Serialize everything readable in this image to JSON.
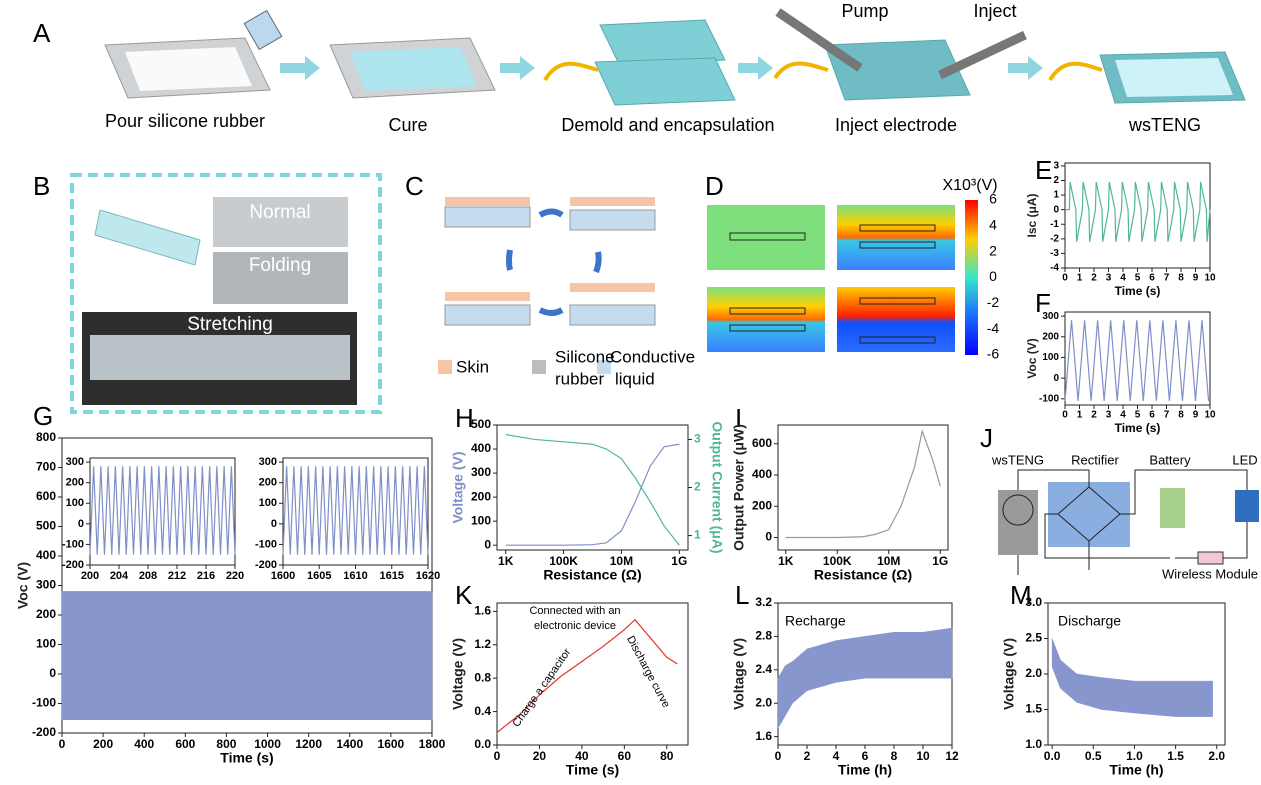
{
  "panel_a": {
    "label": "A",
    "steps": [
      "Pour silicone rubber",
      "Cure",
      "Demold and encapsulation",
      "Inject electrode",
      "wsTENG"
    ],
    "pump": "Pump",
    "inject": "Inject"
  },
  "panel_b": {
    "label": "B",
    "photos": [
      "Normal",
      "Folding",
      "Stretching"
    ]
  },
  "panel_c": {
    "label": "C",
    "legend": [
      [
        "Skin"
      ],
      [
        "Silicone",
        "rubber"
      ],
      [
        "Conductive",
        "liquid"
      ]
    ]
  },
  "panel_d": {
    "label": "D",
    "colorbar": {
      "title": "X10³(V)",
      "ticks": [
        6,
        4,
        2,
        0,
        -2,
        -4,
        -6
      ]
    }
  },
  "panel_j": {
    "label": "J",
    "nodes": [
      "wsTENG",
      "Rectifier",
      "Battery",
      "LED",
      "Wireless Module"
    ]
  },
  "chart_data": [
    {
      "type": "line",
      "panel": "E",
      "xlabel": "Time (s)",
      "ylabel": "Isc (μA)",
      "xlim": [
        0,
        10
      ],
      "ylim": [
        -4,
        3.2
      ],
      "xticks": [
        0,
        1,
        2,
        3,
        4,
        5,
        6,
        7,
        8,
        9,
        10
      ],
      "yticks": [
        -4,
        -3,
        -2,
        -1,
        0,
        1,
        2,
        3
      ],
      "x": [
        0,
        0.3,
        0.35,
        0.75,
        0.8,
        1.2,
        1.25,
        1.65,
        1.7,
        2.1,
        2.15,
        2.55,
        2.6,
        3.0,
        3.05,
        3.45,
        3.5,
        3.9,
        3.95,
        4.35,
        4.4,
        4.8,
        4.85,
        5.25,
        5.3,
        5.7,
        5.75,
        6.15,
        6.2,
        6.6,
        6.65,
        7.05,
        7.1,
        7.5,
        7.55,
        7.95,
        8.0,
        8.4,
        8.45,
        8.85,
        8.9,
        9.3,
        9.35,
        9.75,
        9.8,
        10
      ],
      "series": [
        {
          "color": "#4fb88f",
          "values": [
            0,
            0,
            1.9,
            0,
            -2.2,
            0,
            1.9,
            0,
            -2.2,
            0,
            1.9,
            0,
            -2.2,
            0,
            1.9,
            0,
            -2.2,
            0,
            1.9,
            0,
            -2.2,
            0,
            1.9,
            0,
            -2.2,
            0,
            1.9,
            0,
            -2.2,
            0,
            1.9,
            0,
            -2.2,
            0,
            1.9,
            0,
            -2.2,
            0,
            1.9,
            0,
            -2.2,
            0,
            1.9,
            0,
            -2.2,
            0
          ]
        }
      ]
    },
    {
      "type": "line",
      "panel": "F",
      "xlabel": "Time (s)",
      "ylabel": "Voc (V)",
      "xlim": [
        0,
        10
      ],
      "ylim": [
        -130,
        320
      ],
      "xticks": [
        0,
        1,
        2,
        3,
        4,
        5,
        6,
        7,
        8,
        9,
        10
      ],
      "yticks": [
        -100,
        0,
        100,
        200,
        300
      ],
      "x": [
        0,
        0.45,
        0.9,
        1.35,
        1.8,
        2.25,
        2.7,
        3.15,
        3.6,
        4.05,
        4.5,
        4.95,
        5.4,
        5.85,
        6.3,
        6.75,
        7.2,
        7.65,
        8.1,
        8.55,
        9.0,
        9.45,
        9.9
      ],
      "series": [
        {
          "color": "#7f8fc8",
          "values": [
            -110,
            280,
            -110,
            280,
            -110,
            280,
            -110,
            280,
            -110,
            280,
            -110,
            280,
            -110,
            280,
            -110,
            280,
            -110,
            280,
            -110,
            280,
            -110,
            280,
            -110
          ]
        }
      ]
    },
    {
      "type": "band",
      "panel": "G",
      "xlabel": "Time (s)",
      "ylabel": "Voc (V)",
      "xlim": [
        0,
        1800
      ],
      "ylim": [
        -200,
        800
      ],
      "xticks": [
        0,
        200,
        400,
        600,
        800,
        1000,
        1200,
        1400,
        1600,
        1800
      ],
      "yticks": [
        -200,
        -100,
        0,
        100,
        200,
        300,
        400,
        500,
        600,
        700,
        800
      ],
      "x": [
        0,
        1800
      ],
      "series": [
        {
          "color": "#8796cc",
          "upper": [
            280,
            280
          ],
          "lower": [
            -155,
            -155
          ]
        }
      ]
    },
    {
      "type": "line",
      "xlim": [
        200,
        220
      ],
      "ylim": [
        -200,
        320
      ],
      "xticks": [
        200,
        204,
        208,
        212,
        216,
        220
      ],
      "yticks": [
        -200,
        -100,
        0,
        100,
        200,
        300
      ],
      "x": [
        200,
        200.5,
        201,
        201.5,
        202,
        202.5,
        203,
        203.5,
        204,
        204.5,
        205,
        205.5,
        206,
        206.5,
        207,
        207.5,
        208,
        208.5,
        209,
        209.5,
        210,
        210.5,
        211,
        211.5,
        212,
        212.5,
        213,
        213.5,
        214,
        214.5,
        215,
        215.5,
        216,
        216.5,
        217,
        217.5,
        218,
        218.5,
        219,
        219.5,
        220
      ],
      "series": [
        {
          "color": "#7f8fc8",
          "values": [
            -150,
            280,
            -150,
            280,
            -150,
            280,
            -150,
            280,
            -150,
            280,
            -150,
            280,
            -150,
            280,
            -150,
            280,
            -150,
            280,
            -150,
            280,
            -150,
            280,
            -150,
            280,
            -150,
            280,
            -150,
            280,
            -150,
            280,
            -150,
            280,
            -150,
            280,
            -150,
            280,
            -150,
            280,
            -150,
            280,
            -150
          ]
        }
      ]
    },
    {
      "type": "line",
      "xlim": [
        1600,
        1620
      ],
      "ylim": [
        -200,
        320
      ],
      "xticks": [
        1600,
        1605,
        1610,
        1615,
        1620
      ],
      "yticks": [
        -200,
        -100,
        0,
        100,
        200,
        300
      ],
      "x": [
        1600,
        1600.5,
        1601,
        1601.5,
        1602,
        1602.5,
        1603,
        1603.5,
        1604,
        1604.5,
        1605,
        1605.5,
        1606,
        1606.5,
        1607,
        1607.5,
        1608,
        1608.5,
        1609,
        1609.5,
        1610,
        1610.5,
        1611,
        1611.5,
        1612,
        1612.5,
        1613,
        1613.5,
        1614,
        1614.5,
        1615,
        1615.5,
        1616,
        1616.5,
        1617,
        1617.5,
        1618,
        1618.5,
        1619,
        1619.5,
        1620
      ],
      "series": [
        {
          "color": "#7f8fc8",
          "values": [
            -150,
            280,
            -150,
            280,
            -150,
            280,
            -150,
            280,
            -150,
            280,
            -150,
            280,
            -150,
            280,
            -150,
            280,
            -150,
            280,
            -150,
            280,
            -150,
            280,
            -150,
            280,
            -150,
            280,
            -150,
            280,
            -150,
            280,
            -150,
            280,
            -150,
            280,
            -150,
            280,
            -150,
            280,
            -150,
            280,
            -150
          ]
        }
      ]
    },
    {
      "type": "line",
      "panel": "H",
      "xlabel": "Resistance (Ω)",
      "ylabel": "Voltage (V)",
      "y2label": "Output Current (μA)",
      "xlog": true,
      "xlim": [
        500,
        2000000000
      ],
      "ylim": [
        -20,
        500
      ],
      "y2lim": [
        0.7,
        3.3
      ],
      "xticks": [
        {
          "value": 1000,
          "label": "1K"
        },
        {
          "value": 100000,
          "label": "100K"
        },
        {
          "value": 10000000,
          "label": "10M"
        },
        {
          "value": 1000000000,
          "label": "1G"
        }
      ],
      "yticks": [
        0,
        100,
        200,
        300,
        400,
        500
      ],
      "y2ticks": [
        1,
        2,
        3
      ],
      "x": [
        1000,
        10000,
        100000,
        1000000,
        3000000,
        10000000,
        30000000,
        100000000,
        300000000,
        1000000000
      ],
      "series": [
        {
          "color": "#7f8fc8",
          "values": [
            0,
            0,
            0,
            2,
            10,
            60,
            180,
            330,
            410,
            420
          ]
        },
        {
          "color": "#4fb88f",
          "axis": "y2",
          "values": [
            3.1,
            3.0,
            2.95,
            2.9,
            2.8,
            2.6,
            2.2,
            1.7,
            1.2,
            0.8
          ]
        }
      ]
    },
    {
      "type": "line",
      "panel": "I",
      "xlabel": "Resistance (Ω)",
      "ylabel": "Output Power (μW)",
      "xlog": true,
      "xlim": [
        500,
        2000000000
      ],
      "ylim": [
        -80,
        720
      ],
      "xticks": [
        {
          "value": 1000,
          "label": "1K"
        },
        {
          "value": 100000,
          "label": "100K"
        },
        {
          "value": 10000000,
          "label": "10M"
        },
        {
          "value": 1000000000,
          "label": "1G"
        }
      ],
      "yticks": [
        0,
        200,
        400,
        600
      ],
      "x": [
        1000,
        10000,
        100000,
        1000000,
        3000000,
        10000000,
        30000000,
        100000000,
        200000000,
        500000000,
        1000000000
      ],
      "series": [
        {
          "color": "#999999",
          "values": [
            0,
            0,
            0,
            5,
            20,
            50,
            200,
            450,
            680,
            500,
            330
          ]
        }
      ]
    },
    {
      "type": "line",
      "panel": "K",
      "xlabel": "Time (s)",
      "ylabel": "Voltage (V)",
      "xlim": [
        0,
        90
      ],
      "ylim": [
        0,
        1.7
      ],
      "xticks": [
        0,
        20,
        40,
        60,
        80
      ],
      "yticks": [
        {
          "value": 0,
          "label": "0.0"
        },
        0.4,
        0.8,
        1.2,
        1.6
      ],
      "annotations": [
        "Connected with an",
        "electronic device",
        "Charge a capacitor",
        "Discharge curve"
      ],
      "x": [
        0,
        10,
        20,
        30,
        40,
        50,
        60,
        65,
        70,
        75,
        80,
        85
      ],
      "series": [
        {
          "color": "#e8312f",
          "values": [
            0.15,
            0.35,
            0.6,
            0.82,
            1.0,
            1.18,
            1.38,
            1.5,
            1.35,
            1.2,
            1.05,
            0.97
          ]
        }
      ]
    },
    {
      "type": "band",
      "panel": "L",
      "xlabel": "Time (h)",
      "ylabel": "Voltage (V)",
      "xlim": [
        0,
        12
      ],
      "ylim": [
        1.5,
        3.2
      ],
      "xticks": [
        0,
        2,
        4,
        6,
        8,
        10,
        12
      ],
      "yticks": [
        1.6,
        {
          "value": 2,
          "label": "2.0"
        },
        2.4,
        2.8,
        3.2
      ],
      "annotations": [
        "Recharge"
      ],
      "x": [
        0,
        0.5,
        1,
        2,
        4,
        6,
        8,
        10,
        12
      ],
      "series": [
        {
          "color": "#8796cc",
          "upper": [
            2.3,
            2.45,
            2.5,
            2.65,
            2.75,
            2.8,
            2.85,
            2.85,
            2.9
          ],
          "lower": [
            1.7,
            1.85,
            2.0,
            2.15,
            2.25,
            2.3,
            2.3,
            2.3,
            2.3
          ]
        }
      ]
    },
    {
      "type": "band",
      "panel": "M",
      "xlabel": "Time (h)",
      "ylabel": "Voltage (V)",
      "xlim": [
        -0.05,
        2.1
      ],
      "ylim": [
        1,
        3
      ],
      "xticks": [
        {
          "value": 0,
          "label": "0.0"
        },
        0.5,
        {
          "value": 1,
          "label": "1.0"
        },
        1.5,
        {
          "value": 2,
          "label": "2.0"
        }
      ],
      "yticks": [
        {
          "value": 1,
          "label": "1.0"
        },
        1.5,
        {
          "value": 2,
          "label": "2.0"
        },
        2.5,
        {
          "value": 3,
          "label": "3.0"
        }
      ],
      "annotations": [
        "Discharge"
      ],
      "x": [
        0,
        0.1,
        0.3,
        0.6,
        1,
        1.5,
        1.95
      ],
      "series": [
        {
          "color": "#8796cc",
          "upper": [
            2.5,
            2.2,
            2.0,
            1.95,
            1.9,
            1.9,
            1.9
          ],
          "lower": [
            2.1,
            1.8,
            1.6,
            1.5,
            1.45,
            1.4,
            1.4
          ]
        }
      ]
    }
  ]
}
